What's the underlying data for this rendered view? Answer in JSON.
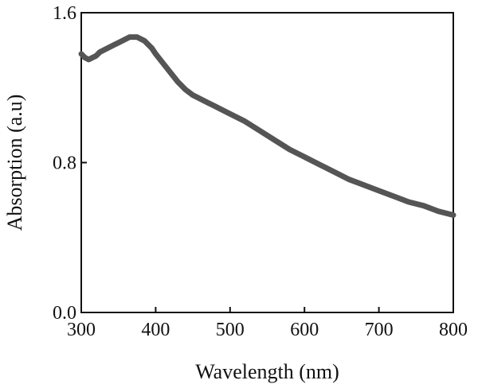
{
  "chart_data": {
    "type": "line",
    "title": "",
    "xlabel": "Wavelength (nm)",
    "ylabel": "Absorption (a.u)",
    "xlim": [
      300,
      800
    ],
    "ylim": [
      0.0,
      1.6
    ],
    "xticks": [
      300,
      400,
      500,
      600,
      700,
      800
    ],
    "xtick_labels": [
      "300",
      "400",
      "500",
      "600",
      "700",
      "800"
    ],
    "yticks": [
      0.0,
      0.8,
      1.6
    ],
    "ytick_labels": [
      "0.0",
      "0.8",
      "1.6"
    ],
    "grid": false,
    "legend": "none",
    "line_color": "#555555",
    "series": [
      {
        "x": [
          300,
          305,
          310,
          315,
          320,
          325,
          330,
          335,
          340,
          345,
          350,
          355,
          360,
          365,
          370,
          375,
          380,
          385,
          390,
          395,
          400,
          410,
          420,
          430,
          440,
          450,
          460,
          470,
          480,
          490,
          500,
          520,
          540,
          560,
          580,
          600,
          620,
          640,
          660,
          680,
          700,
          720,
          740,
          760,
          780,
          800
        ],
        "y": [
          1.38,
          1.36,
          1.35,
          1.36,
          1.37,
          1.39,
          1.4,
          1.41,
          1.42,
          1.43,
          1.44,
          1.45,
          1.46,
          1.47,
          1.47,
          1.47,
          1.46,
          1.45,
          1.43,
          1.41,
          1.38,
          1.33,
          1.28,
          1.23,
          1.19,
          1.16,
          1.14,
          1.12,
          1.1,
          1.08,
          1.06,
          1.02,
          0.97,
          0.92,
          0.87,
          0.83,
          0.79,
          0.75,
          0.71,
          0.68,
          0.65,
          0.62,
          0.59,
          0.57,
          0.54,
          0.52
        ]
      }
    ]
  }
}
